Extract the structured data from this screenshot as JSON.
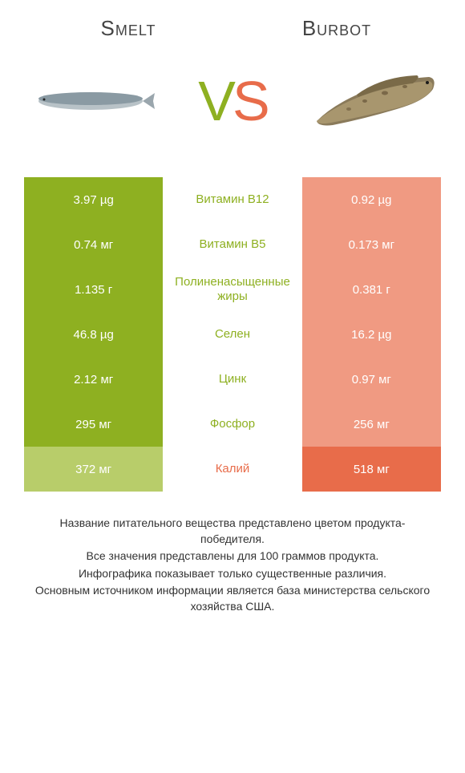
{
  "header": {
    "left_title": "Smelt",
    "right_title": "Burbot",
    "vs_text": "VS"
  },
  "colors": {
    "left_win": "#8eb021",
    "left_lose": "#b8cd6a",
    "right_win": "#e86c4a",
    "right_lose": "#f09a82",
    "middle_left_text": "#8eb021",
    "middle_right_text": "#e86c4a",
    "vs_v": "#8eb021",
    "vs_s": "#e86c4a"
  },
  "rows": [
    {
      "label": "Витамин B12",
      "left": "3.97 µg",
      "right": "0.92 µg",
      "winner": "left"
    },
    {
      "label": "Витамин B5",
      "left": "0.74 мг",
      "right": "0.173 мг",
      "winner": "left"
    },
    {
      "label": "Полиненасыщенные жиры",
      "left": "1.135 г",
      "right": "0.381 г",
      "winner": "left"
    },
    {
      "label": "Селен",
      "left": "46.8 µg",
      "right": "16.2 µg",
      "winner": "left"
    },
    {
      "label": "Цинк",
      "left": "2.12 мг",
      "right": "0.97 мг",
      "winner": "left"
    },
    {
      "label": "Фосфор",
      "left": "295 мг",
      "right": "256 мг",
      "winner": "left"
    },
    {
      "label": "Калий",
      "left": "372 мг",
      "right": "518 мг",
      "winner": "right"
    }
  ],
  "footnote": {
    "line1": "Название питательного вещества представлено цветом продукта-победителя.",
    "line2": "Все значения представлены для 100 граммов продукта.",
    "line3": "Инфографика показывает только существенные различия.",
    "line4": "Основным источником информации является база министерства сельского хозяйства США."
  }
}
